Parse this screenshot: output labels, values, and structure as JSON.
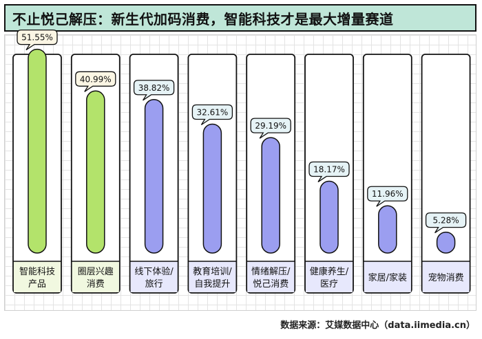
{
  "title": "不止悦己解压：新生代加码消费，智能科技才是最大增量赛道",
  "source": "数据来源：艾媒数据中心（data.iimedia.cn）",
  "colors": {
    "title_bg": "#bfe6d8",
    "bar_green": "#b3e36b",
    "bar_purple": "#9b9ef0",
    "label_green_bg": "#f1f8e0",
    "label_purple_bg": "#e7e8fc",
    "bubble_green_bg": "#fbf6e4",
    "bubble_purple_bg": "#e6f3f6",
    "outline": "#111111"
  },
  "chart_data": {
    "type": "bar",
    "categories": [
      [
        "智能科技",
        "产品"
      ],
      [
        "圈层兴趣",
        "消费"
      ],
      [
        "线下体验/",
        "旅行"
      ],
      [
        "教育培训/",
        "自我提升"
      ],
      [
        "情绪解压/",
        "悦己消费"
      ],
      [
        "健康养生/",
        "医疗"
      ],
      [
        "家居/家装"
      ],
      [
        "宠物消费"
      ]
    ],
    "values": [
      51.55,
      40.99,
      38.82,
      32.61,
      29.19,
      18.17,
      11.96,
      5.28
    ],
    "value_labels": [
      "51.55%",
      "40.99%",
      "38.82%",
      "32.61%",
      "29.19%",
      "18.17%",
      "11.96%",
      "5.28%"
    ],
    "bar_colors": [
      "green",
      "green",
      "purple",
      "purple",
      "purple",
      "purple",
      "purple",
      "purple"
    ],
    "ylim": [
      0,
      60
    ],
    "grid": true,
    "legend": "none"
  }
}
